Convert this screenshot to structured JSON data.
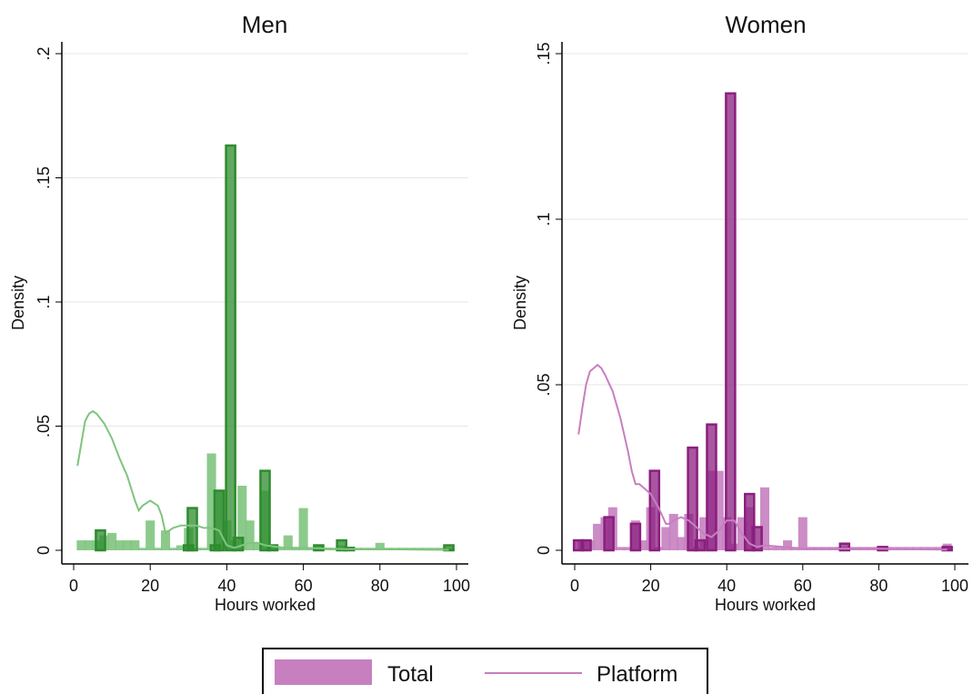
{
  "figure": {
    "legend": {
      "total_label": "Total",
      "platform_label": "Platform"
    }
  },
  "colors": {
    "men_main": "#2e8b2e",
    "men_light": "#7fc47f",
    "women_main": "#8b1f7f",
    "women_light": "#c77fc0",
    "grid": "#e6e6e6"
  },
  "chart_data": [
    {
      "type": "bar",
      "title": "Men",
      "xlabel": "Hours worked",
      "ylabel": "Density",
      "xlim": [
        0,
        100
      ],
      "ylim": [
        0,
        0.2
      ],
      "xticks": [
        "0",
        "20",
        "40",
        "60",
        "80",
        "100"
      ],
      "yticks": [
        "0",
        ".05",
        ".1",
        ".15",
        ".2"
      ],
      "grid": true,
      "bin_width": 2.4,
      "series": [
        {
          "name": "Total",
          "kind": "histogram",
          "style": "filled",
          "x": [
            2,
            4,
            6,
            8,
            10,
            12,
            14,
            16,
            18,
            20,
            22,
            24,
            26,
            28,
            30,
            32,
            34,
            36,
            38,
            40,
            42,
            44,
            46,
            48,
            50,
            52,
            54,
            56,
            58,
            60,
            62,
            64,
            66,
            68,
            70,
            72,
            74,
            76,
            78,
            80,
            82,
            84,
            86,
            88,
            90,
            92,
            94,
            96,
            98
          ],
          "values": [
            0.004,
            0.004,
            0.004,
            0.006,
            0.007,
            0.004,
            0.004,
            0.004,
            0.001,
            0.012,
            0.001,
            0.008,
            0.001,
            0.002,
            0.009,
            0.001,
            0.001,
            0.039,
            0.024,
            0.012,
            0.004,
            0.026,
            0.012,
            0.003,
            0.024,
            0.002,
            0.001,
            0.006,
            0.001,
            0.017,
            0.001,
            0.002,
            0.001,
            0.001,
            0.002,
            0.001,
            0.001,
            0.001,
            0.001,
            0.003,
            0.001,
            0.001,
            0.001,
            0.001,
            0.001,
            0.001,
            0.001,
            0.001,
            0.001
          ]
        },
        {
          "kind": "histogram",
          "style": "outlined",
          "x": [
            7,
            30,
            31,
            37,
            38,
            41,
            43,
            50,
            52,
            64,
            70,
            72,
            98
          ],
          "values": [
            0.008,
            0.002,
            0.017,
            0.002,
            0.024,
            0.163,
            0.005,
            0.032,
            0.002,
            0.002,
            0.004,
            0.001,
            0.002
          ]
        },
        {
          "name": "Platform",
          "kind": "line",
          "x": [
            1,
            3,
            4,
            5,
            6,
            8,
            10,
            12,
            14,
            16,
            17,
            18,
            20,
            22,
            23,
            24,
            26,
            28,
            30,
            32,
            34,
            36,
            38,
            40,
            42,
            44,
            46,
            48,
            50,
            55,
            60,
            70,
            80,
            90,
            98
          ],
          "values": [
            0.034,
            0.052,
            0.055,
            0.056,
            0.055,
            0.051,
            0.045,
            0.037,
            0.03,
            0.02,
            0.016,
            0.018,
            0.02,
            0.018,
            0.014,
            0.007,
            0.009,
            0.01,
            0.01,
            0.01,
            0.009,
            0.009,
            0.008,
            0.002,
            0.001,
            0.002,
            0.003,
            0.003,
            0.002,
            0.001,
            0.001,
            0.0005,
            0.0005,
            0.0003,
            0.0002
          ]
        }
      ]
    },
    {
      "type": "bar",
      "title": "Women",
      "xlabel": "Hours worked",
      "ylabel": "Density",
      "xlim": [
        0,
        100
      ],
      "ylim": [
        0,
        0.15
      ],
      "xticks": [
        "0",
        "20",
        "40",
        "60",
        "80",
        "100"
      ],
      "yticks": [
        "0",
        ".05",
        ".1",
        ".15"
      ],
      "grid": true,
      "bin_width": 2.4,
      "series": [
        {
          "name": "Total",
          "kind": "histogram",
          "style": "filled",
          "x": [
            2,
            4,
            6,
            8,
            10,
            12,
            14,
            16,
            18,
            20,
            22,
            24,
            26,
            28,
            30,
            32,
            34,
            36,
            38,
            40,
            42,
            44,
            46,
            48,
            50,
            52,
            54,
            56,
            58,
            60,
            62,
            64,
            66,
            68,
            70,
            72,
            74,
            76,
            78,
            80,
            82,
            84,
            86,
            88,
            90,
            92,
            94,
            96,
            98
          ],
          "values": [
            0.003,
            0.003,
            0.008,
            0.01,
            0.013,
            0.001,
            0.001,
            0.009,
            0.003,
            0.013,
            0.001,
            0.007,
            0.011,
            0.004,
            0.011,
            0.001,
            0.01,
            0.024,
            0.024,
            0.01,
            0.002,
            0.01,
            0.013,
            0.001,
            0.019,
            0.001,
            0.001,
            0.003,
            0.001,
            0.01,
            0.001,
            0.001,
            0.001,
            0.001,
            0.001,
            0.001,
            0.001,
            0.001,
            0.001,
            0.001,
            0.001,
            0.001,
            0.001,
            0.001,
            0.001,
            0.001,
            0.001,
            0.001,
            0.002
          ]
        },
        {
          "kind": "histogram",
          "style": "outlined",
          "x": [
            1,
            3,
            9,
            16,
            21,
            31,
            33,
            36,
            41,
            46,
            48,
            71,
            81,
            98
          ],
          "values": [
            0.003,
            0.003,
            0.01,
            0.008,
            0.024,
            0.031,
            0.003,
            0.038,
            0.138,
            0.017,
            0.007,
            0.002,
            0.001,
            0.001
          ]
        },
        {
          "name": "Platform",
          "kind": "line",
          "x": [
            1,
            2,
            3,
            4,
            5,
            6,
            7,
            8,
            10,
            12,
            14,
            15,
            16,
            17,
            18,
            20,
            22,
            24,
            25,
            26,
            28,
            30,
            32,
            34,
            36,
            38,
            40,
            42,
            44,
            46,
            48,
            50,
            55,
            60,
            70,
            80,
            90,
            98
          ],
          "values": [
            0.035,
            0.043,
            0.05,
            0.054,
            0.055,
            0.056,
            0.055,
            0.053,
            0.048,
            0.04,
            0.03,
            0.024,
            0.02,
            0.02,
            0.019,
            0.017,
            0.013,
            0.008,
            0.008,
            0.009,
            0.01,
            0.009,
            0.007,
            0.005,
            0.004,
            0.006,
            0.009,
            0.009,
            0.005,
            0.002,
            0.001,
            0.0015,
            0.001,
            0.0005,
            0.0005,
            0.0005,
            0.0003,
            0.0002
          ]
        }
      ]
    }
  ]
}
